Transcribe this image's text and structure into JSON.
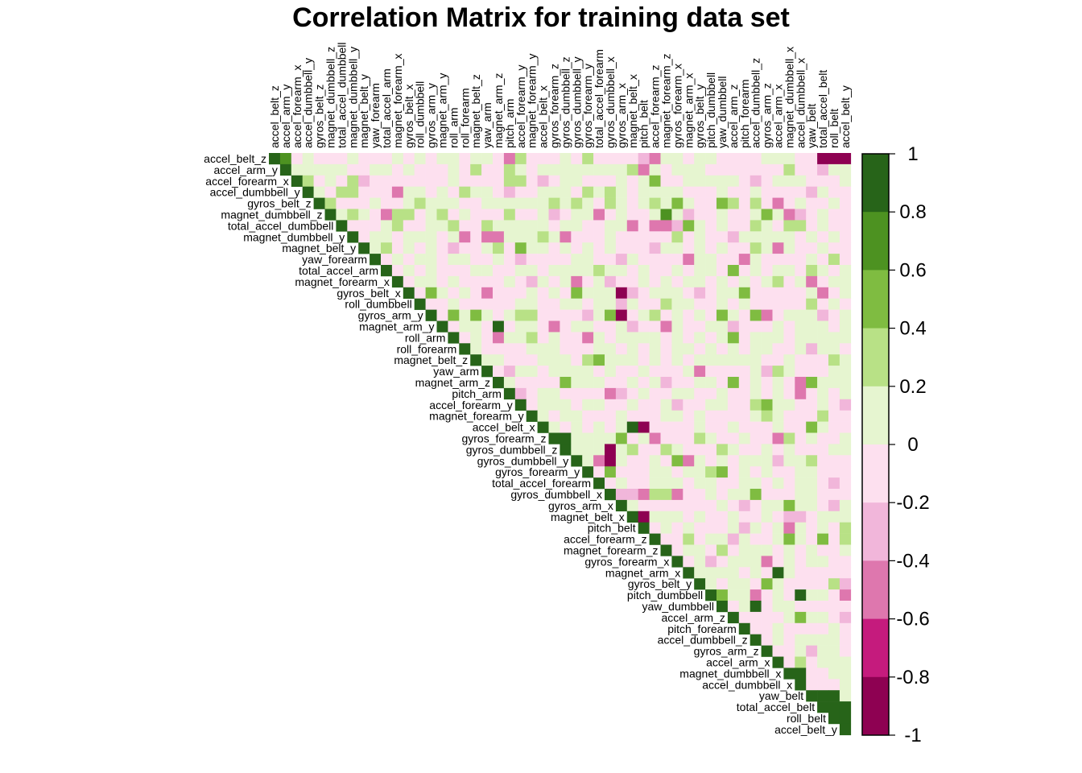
{
  "chart_data": {
    "type": "heatmap",
    "layout": "upper-triangle",
    "title": "Correlation Matrix for training data set",
    "variables": [
      "accel_belt_z",
      "accel_arm_y",
      "accel_forearm_x",
      "accel_dumbbell_y",
      "gyros_belt_z",
      "magnet_dumbbell_z",
      "total_accel_dumbbell",
      "magnet_dumbbell_y",
      "magnet_belt_y",
      "yaw_forearm",
      "total_accel_arm",
      "magnet_forearm_x",
      "gyros_belt_x",
      "roll_dumbbell",
      "gyros_arm_y",
      "magnet_arm_y",
      "roll_arm",
      "roll_forearm",
      "magnet_belt_z",
      "yaw_arm",
      "magnet_arm_z",
      "pitch_arm",
      "accel_forearm_y",
      "magnet_forearm_y",
      "accel_belt_x",
      "gyros_forearm_z",
      "gyros_dumbbell_z",
      "gyros_dumbbell_y",
      "gyros_forearm_y",
      "total_accel_forearm",
      "gyros_dumbbell_x",
      "gyros_arm_x",
      "magnet_belt_x",
      "pitch_belt",
      "accel_forearm_z",
      "magnet_forearm_z",
      "gyros_forearm_x",
      "magnet_arm_x",
      "gyros_belt_y",
      "pitch_dumbbell",
      "yaw_dumbbell",
      "accel_arm_z",
      "pitch_forearm",
      "accel_dumbbell_z",
      "gyros_arm_z",
      "accel_arm_x",
      "magnet_dumbbell_x",
      "accel_dumbbell_x",
      "yaw_belt",
      "total_accel_belt",
      "roll_belt",
      "accel_belt_y"
    ],
    "colorbar": {
      "ticks": [
        "1",
        "0.8",
        "0.6",
        "0.4",
        "0.2",
        "0",
        "-0.2",
        "-0.4",
        "-0.6",
        "-0.8",
        "-1"
      ],
      "range": [
        -1,
        1
      ],
      "bins": 10,
      "colors": [
        "#8E0152",
        "#C51B7D",
        "#DE77AE",
        "#F1B6DA",
        "#FDE0EF",
        "#E6F5D0",
        "#B8E186",
        "#7FBC41",
        "#4D9221",
        "#276419"
      ]
    },
    "highlighted_correlations": [
      {
        "var1": "accel_belt_z",
        "var2": "total_accel_belt",
        "r": -0.95
      },
      {
        "var1": "accel_belt_z",
        "var2": "roll_belt",
        "r": -0.95
      },
      {
        "var1": "accel_belt_z",
        "var2": "accel_belt_y",
        "r": -0.95
      },
      {
        "var1": "accel_belt_z",
        "var2": "accel_arm_y",
        "r": 0.65
      },
      {
        "var1": "magnet_arm_y",
        "var2": "magnet_arm_z",
        "r": 0.85
      },
      {
        "var1": "gyros_arm_y",
        "var2": "gyros_arm_x",
        "r": -0.92
      },
      {
        "var1": "accel_belt_x",
        "var2": "magnet_belt_x",
        "r": 0.92
      },
      {
        "var1": "accel_belt_x",
        "var2": "pitch_belt",
        "r": -0.95
      },
      {
        "var1": "magnet_belt_x",
        "var2": "pitch_belt",
        "r": -0.9
      },
      {
        "var1": "gyros_forearm_z",
        "var2": "gyros_dumbbell_z",
        "r": 0.95
      },
      {
        "var1": "gyros_dumbbell_z",
        "var2": "gyros_dumbbell_x",
        "r": -0.95
      },
      {
        "var1": "gyros_dumbbell_y",
        "var2": "gyros_dumbbell_x",
        "r": -0.9
      },
      {
        "var1": "pitch_dumbbell",
        "var2": "accel_dumbbell_x",
        "r": 0.9
      },
      {
        "var1": "yaw_dumbbell",
        "var2": "accel_dumbbell_z",
        "r": 0.85
      },
      {
        "var1": "magnet_dumbbell_x",
        "var2": "accel_dumbbell_x",
        "r": 0.8
      },
      {
        "var1": "yaw_belt",
        "var2": "total_accel_belt",
        "r": 0.9
      },
      {
        "var1": "yaw_belt",
        "var2": "roll_belt",
        "r": 0.85
      },
      {
        "var1": "total_accel_belt",
        "var2": "roll_belt",
        "r": 0.98
      },
      {
        "var1": "total_accel_belt",
        "var2": "accel_belt_y",
        "r": 0.93
      },
      {
        "var1": "roll_belt",
        "var2": "accel_belt_y",
        "r": 0.92
      },
      {
        "var1": "magnet_dumbbell_z",
        "var2": "magnet_forearm_z",
        "r": 0.7
      },
      {
        "var1": "gyros_arm_z",
        "var2": "gyros_arm_y",
        "r": -0.55
      },
      {
        "var1": "magnet_arm_x",
        "var2": "accel_arm_x",
        "r": 0.8
      },
      {
        "var1": "gyros_belt_x",
        "var2": "gyros_arm_x",
        "r": -0.8
      }
    ]
  }
}
